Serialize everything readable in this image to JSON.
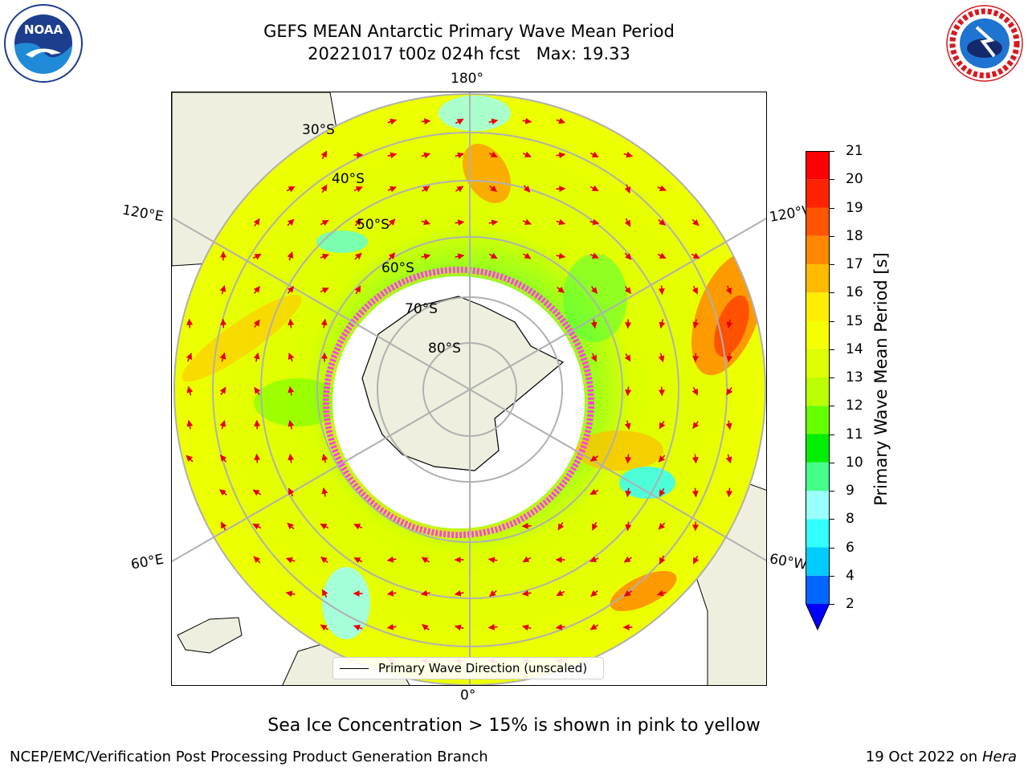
{
  "header": {
    "title_line1": "GEFS MEAN Antarctic Primary Wave Mean Period",
    "title_line2": "20221017 t00z 024h fcst   Max: 19.33"
  },
  "logos": {
    "left": "noaa-logo",
    "right": "national-weather-service-logo"
  },
  "map": {
    "projection": "south-polar-stereographic",
    "longitude_labels": {
      "top": "180°",
      "bottom": "0°",
      "upper_left": "120°E",
      "upper_right": "120°W",
      "lower_left": "60°E",
      "lower_right": "60°W"
    },
    "latitude_labels": [
      "30°S",
      "40°S",
      "50°S",
      "60°S",
      "70°S",
      "80°S"
    ],
    "legend_label": "Primary Wave Direction (unscaled)",
    "colors": {
      "land": "#efefdf",
      "coast": "#000000",
      "grid": "#b0b0b0",
      "arrow": "#e8000b",
      "ice_edge": "#ff44dd"
    }
  },
  "colorbar": {
    "label": "Primary Wave Mean Period [s]",
    "ticks": [
      "2",
      "4",
      "6",
      "8",
      "9",
      "10",
      "11",
      "12",
      "13",
      "14",
      "15",
      "16",
      "17",
      "18",
      "19",
      "20",
      "21"
    ],
    "bins": [
      {
        "color": "#0066ff"
      },
      {
        "color": "#00ccff"
      },
      {
        "color": "#33ffff"
      },
      {
        "color": "#99ffff"
      },
      {
        "color": "#44ff88"
      },
      {
        "color": "#00ee00"
      },
      {
        "color": "#66ff00"
      },
      {
        "color": "#bbff00"
      },
      {
        "color": "#ddff00"
      },
      {
        "color": "#f4ff00"
      },
      {
        "color": "#ffee00"
      },
      {
        "color": "#ffbb00"
      },
      {
        "color": "#ff8800"
      },
      {
        "color": "#ff5500"
      },
      {
        "color": "#ff2200"
      },
      {
        "color": "#ff0000"
      }
    ],
    "under_color": "#0000ff"
  },
  "caption": "Sea Ice Concentration > 15% is shown in pink to yellow",
  "footer": {
    "left": "NCEP/EMC/Verification Post Processing Product Generation Branch",
    "right_date": "19 Oct 2022 on",
    "right_host": "Hera"
  }
}
